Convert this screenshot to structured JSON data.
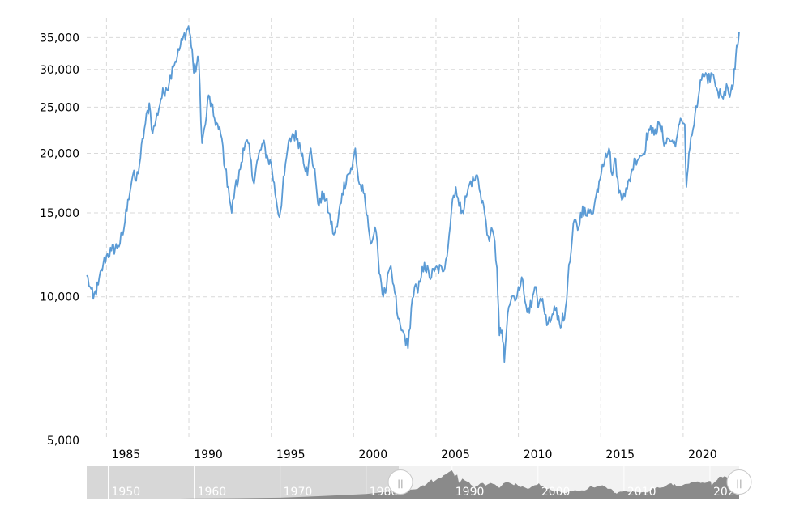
{
  "colors": {
    "line": "#5b9bd5",
    "grid": "#d9d9d9",
    "axis_text": "#000000",
    "navigator_left_bg": "#d7d7d7",
    "navigator_right_bg": "#f2f2f2",
    "navigator_series": "#8a8a8a",
    "navigator_label": "#ffffff",
    "navigator_handle": "#ffffff",
    "navigator_handle_border": "#c8c8c8"
  },
  "chart_data": {
    "type": "line",
    "title": "",
    "xlabel": "",
    "ylabel": "",
    "y_scale": "log",
    "xlim": [
      1983.8,
      2023.4
    ],
    "ylim": [
      5000,
      38500
    ],
    "grid": true,
    "legend": "none",
    "x_ticks": [
      {
        "value": 1985,
        "label": "1985"
      },
      {
        "value": 1990,
        "label": "1990"
      },
      {
        "value": 1995,
        "label": "1995"
      },
      {
        "value": 2000,
        "label": "2000"
      },
      {
        "value": 2005,
        "label": "2005"
      },
      {
        "value": 2010,
        "label": "2010"
      },
      {
        "value": 2015,
        "label": "2015"
      },
      {
        "value": 2020,
        "label": "2020"
      }
    ],
    "y_ticks": [
      {
        "value": 5000,
        "label": "5,000"
      },
      {
        "value": 10000,
        "label": "10,000"
      },
      {
        "value": 15000,
        "label": "15,000"
      },
      {
        "value": 20000,
        "label": "20,000"
      },
      {
        "value": 25000,
        "label": "25,000"
      },
      {
        "value": 30000,
        "label": "30,000"
      },
      {
        "value": 35000,
        "label": "35,000"
      }
    ],
    "series": [
      {
        "values": [
          [
            1983.8,
            11100
          ],
          [
            1984.0,
            10500
          ],
          [
            1984.2,
            9900
          ],
          [
            1984.5,
            10600
          ],
          [
            1984.8,
            11700
          ],
          [
            1985.0,
            12200
          ],
          [
            1985.3,
            12500
          ],
          [
            1985.7,
            12800
          ],
          [
            1986.0,
            13500
          ],
          [
            1986.3,
            16000
          ],
          [
            1986.6,
            18000
          ],
          [
            1986.8,
            17500
          ],
          [
            1987.0,
            19000
          ],
          [
            1987.3,
            22500
          ],
          [
            1987.6,
            25500
          ],
          [
            1987.8,
            22000
          ],
          [
            1988.0,
            23500
          ],
          [
            1988.3,
            26000
          ],
          [
            1988.6,
            27500
          ],
          [
            1988.8,
            28000
          ],
          [
            1989.0,
            30500
          ],
          [
            1989.3,
            32000
          ],
          [
            1989.6,
            34500
          ],
          [
            1989.98,
            37000
          ],
          [
            1990.2,
            33000
          ],
          [
            1990.3,
            29500
          ],
          [
            1990.6,
            31500
          ],
          [
            1990.8,
            21000
          ],
          [
            1991.0,
            23000
          ],
          [
            1991.2,
            26500
          ],
          [
            1991.5,
            24000
          ],
          [
            1991.8,
            22500
          ],
          [
            1992.0,
            21500
          ],
          [
            1992.2,
            18500
          ],
          [
            1992.4,
            17000
          ],
          [
            1992.6,
            15000
          ],
          [
            1992.8,
            17000
          ],
          [
            1993.0,
            17500
          ],
          [
            1993.3,
            20500
          ],
          [
            1993.6,
            21000
          ],
          [
            1993.9,
            17500
          ],
          [
            1994.2,
            19500
          ],
          [
            1994.5,
            21000
          ],
          [
            1994.8,
            19500
          ],
          [
            1995.0,
            19000
          ],
          [
            1995.3,
            16000
          ],
          [
            1995.5,
            14700
          ],
          [
            1995.8,
            18000
          ],
          [
            1996.0,
            20500
          ],
          [
            1996.3,
            22000
          ],
          [
            1996.6,
            21500
          ],
          [
            1996.9,
            20000
          ],
          [
            1997.2,
            18000
          ],
          [
            1997.4,
            20500
          ],
          [
            1997.7,
            17500
          ],
          [
            1997.9,
            15500
          ],
          [
            1998.2,
            16500
          ],
          [
            1998.5,
            15000
          ],
          [
            1998.8,
            13500
          ],
          [
            1999.0,
            14000
          ],
          [
            1999.3,
            16500
          ],
          [
            1999.6,
            18000
          ],
          [
            1999.9,
            18500
          ],
          [
            2000.1,
            20500
          ],
          [
            2000.3,
            17500
          ],
          [
            2000.6,
            16500
          ],
          [
            2000.9,
            14000
          ],
          [
            2001.1,
            13000
          ],
          [
            2001.3,
            14000
          ],
          [
            2001.5,
            12000
          ],
          [
            2001.8,
            10000
          ],
          [
            2002.0,
            10500
          ],
          [
            2002.2,
            11500
          ],
          [
            2002.5,
            10200
          ],
          [
            2002.7,
            9000
          ],
          [
            2002.9,
            8500
          ],
          [
            2003.1,
            8300
          ],
          [
            2003.3,
            7800
          ],
          [
            2003.5,
            9500
          ],
          [
            2003.7,
            10500
          ],
          [
            2003.9,
            10200
          ],
          [
            2004.1,
            11000
          ],
          [
            2004.3,
            11800
          ],
          [
            2004.6,
            11000
          ],
          [
            2004.9,
            11300
          ],
          [
            2005.1,
            11500
          ],
          [
            2005.4,
            11300
          ],
          [
            2005.6,
            12000
          ],
          [
            2005.8,
            13500
          ],
          [
            2006.0,
            16000
          ],
          [
            2006.2,
            17000
          ],
          [
            2006.4,
            15500
          ],
          [
            2006.6,
            15200
          ],
          [
            2006.9,
            16500
          ],
          [
            2007.1,
            17500
          ],
          [
            2007.3,
            17500
          ],
          [
            2007.5,
            18000
          ],
          [
            2007.7,
            16500
          ],
          [
            2007.9,
            15500
          ],
          [
            2008.1,
            13500
          ],
          [
            2008.3,
            13500
          ],
          [
            2008.5,
            13500
          ],
          [
            2008.7,
            11500
          ],
          [
            2008.85,
            8300
          ],
          [
            2009.0,
            8500
          ],
          [
            2009.15,
            7300
          ],
          [
            2009.35,
            9200
          ],
          [
            2009.6,
            10000
          ],
          [
            2009.8,
            9800
          ],
          [
            2010.0,
            10500
          ],
          [
            2010.2,
            11000
          ],
          [
            2010.4,
            9800
          ],
          [
            2010.6,
            9500
          ],
          [
            2010.8,
            9500
          ],
          [
            2011.0,
            10500
          ],
          [
            2011.2,
            9500
          ],
          [
            2011.4,
            9800
          ],
          [
            2011.6,
            9200
          ],
          [
            2011.8,
            8800
          ],
          [
            2012.0,
            9000
          ],
          [
            2012.3,
            9500
          ],
          [
            2012.5,
            8800
          ],
          [
            2012.8,
            9000
          ],
          [
            2013.0,
            10800
          ],
          [
            2013.2,
            12500
          ],
          [
            2013.4,
            14500
          ],
          [
            2013.6,
            13800
          ],
          [
            2013.9,
            15500
          ],
          [
            2014.1,
            14800
          ],
          [
            2014.3,
            15000
          ],
          [
            2014.6,
            15500
          ],
          [
            2014.9,
            17500
          ],
          [
            2015.1,
            19000
          ],
          [
            2015.3,
            20000
          ],
          [
            2015.5,
            20500
          ],
          [
            2015.7,
            18000
          ],
          [
            2015.9,
            19500
          ],
          [
            2016.1,
            16500
          ],
          [
            2016.4,
            16500
          ],
          [
            2016.6,
            16800
          ],
          [
            2016.9,
            18500
          ],
          [
            2017.1,
            19500
          ],
          [
            2017.4,
            19800
          ],
          [
            2017.6,
            20000
          ],
          [
            2017.9,
            22500
          ],
          [
            2018.1,
            22000
          ],
          [
            2018.3,
            22500
          ],
          [
            2018.6,
            22800
          ],
          [
            2018.9,
            21000
          ],
          [
            2019.1,
            21500
          ],
          [
            2019.4,
            21000
          ],
          [
            2019.6,
            21500
          ],
          [
            2019.9,
            23500
          ],
          [
            2020.1,
            23000
          ],
          [
            2020.2,
            17000
          ],
          [
            2020.35,
            20000
          ],
          [
            2020.6,
            22500
          ],
          [
            2020.85,
            25000
          ],
          [
            2021.05,
            28500
          ],
          [
            2021.3,
            29000
          ],
          [
            2021.5,
            28000
          ],
          [
            2021.7,
            29500
          ],
          [
            2021.9,
            28500
          ],
          [
            2022.1,
            27000
          ],
          [
            2022.3,
            26500
          ],
          [
            2022.5,
            27000
          ],
          [
            2022.7,
            27500
          ],
          [
            2022.9,
            27000
          ],
          [
            2023.05,
            28000
          ],
          [
            2023.2,
            32000
          ],
          [
            2023.3,
            33500
          ],
          [
            2023.4,
            36000
          ]
        ]
      }
    ]
  },
  "navigator": {
    "labels": [
      "1950",
      "1960",
      "1970",
      "1980",
      "1990",
      "2000",
      "2010",
      "2020"
    ],
    "range_years": [
      1947.5,
      2023.4
    ],
    "selected_range": [
      1983.8,
      2023.4
    ],
    "handle_left_glyph": "||",
    "handle_right_glyph": "||"
  }
}
